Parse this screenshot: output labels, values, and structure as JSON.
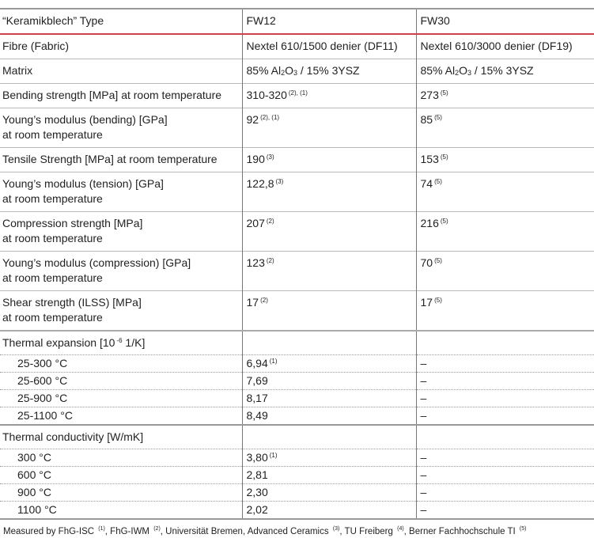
{
  "header": [
    "“Keramikblech” Type",
    "FW12",
    "FW30"
  ],
  "rows": [
    {
      "label": [
        "Fibre (Fabric)"
      ],
      "fw12": "Nextel 610/1500 denier (DF11)",
      "fw12_ref": "",
      "fw30": "Nextel 610/3000 denier (DF19)",
      "fw30_ref": ""
    },
    {
      "label": [
        "Matrix"
      ],
      "fw12": "85% Al2O3 / 15% 3YSZ",
      "fw12_ref": "",
      "fw30": "85% Al2O3 / 15% 3YSZ",
      "fw30_ref": ""
    },
    {
      "label": [
        "Bending strength [MPa] at room temperature"
      ],
      "fw12": "310-320",
      "fw12_ref": "(2), (1)",
      "fw30": "273",
      "fw30_ref": "(5)"
    },
    {
      "label": [
        "Young’s modulus (bending) [GPa]",
        "at room temperature"
      ],
      "fw12": "92",
      "fw12_ref": "(2), (1)",
      "fw30": "85",
      "fw30_ref": "(5)"
    },
    {
      "label": [
        "Tensile Strength [MPa] at room temperature"
      ],
      "fw12": "190",
      "fw12_ref": "(3)",
      "fw30": "153",
      "fw30_ref": "(5)"
    },
    {
      "label": [
        "Young’s modulus (tension) [GPa]",
        "at room temperature"
      ],
      "fw12": "122,8",
      "fw12_ref": "(3)",
      "fw30": "74",
      "fw30_ref": "(5)"
    },
    {
      "label": [
        "Compression strength [MPa]",
        "at room temperature"
      ],
      "fw12": "207",
      "fw12_ref": "(2)",
      "fw30": "216",
      "fw30_ref": "(5)"
    },
    {
      "label": [
        "Young’s modulus (compression) [GPa]",
        "at room temperature"
      ],
      "fw12": "123",
      "fw12_ref": "(2)",
      "fw30": "70",
      "fw30_ref": "(5)"
    },
    {
      "label": [
        "Shear strength (ILSS) [MPa]",
        "at room temperature"
      ],
      "fw12": "17",
      "fw12_ref": "(2)",
      "fw30": "17",
      "fw30_ref": "(5)"
    }
  ],
  "matrix_parts": {
    "pre": "85% Al",
    "sub1": "2",
    "mid": "O",
    "sub2": "3",
    "post": " / 15% 3YSZ"
  },
  "thermal_expansion": {
    "title": "Thermal expansion  [10",
    "exp": "-6",
    "unit": " 1/K]",
    "rows": [
      {
        "t": "25-300 °C",
        "fw12": "6,94",
        "ref": "(1)",
        "fw30": "–"
      },
      {
        "t": "25-600 °C",
        "fw12": "7,69",
        "ref": "",
        "fw30": "–"
      },
      {
        "t": "25-900 °C",
        "fw12": "8,17",
        "ref": "",
        "fw30": "–"
      },
      {
        "t": "25-1100 °C",
        "fw12": "8,49",
        "ref": "",
        "fw30": "–"
      }
    ]
  },
  "thermal_conductivity": {
    "title": "Thermal conductivity  [W/mK]",
    "rows": [
      {
        "t": "300 °C",
        "fw12": "3,80",
        "ref": "(1)",
        "fw30": "–"
      },
      {
        "t": "600 °C",
        "fw12": "2,81",
        "ref": "",
        "fw30": "–"
      },
      {
        "t": "900 °C",
        "fw12": "2,30",
        "ref": "",
        "fw30": "–"
      },
      {
        "t": "1100 °C",
        "fw12": "2,02",
        "ref": "",
        "fw30": "–"
      }
    ]
  },
  "footnote": [
    {
      "t": "Measured by FhG-ISC ",
      "r": "(1)"
    },
    {
      "t": ", FhG-IWM ",
      "r": "(2)"
    },
    {
      "t": ", Universität Bremen, Advanced Ceramics ",
      "r": "(3)"
    },
    {
      "t": ", TU Freiberg ",
      "r": "(4)"
    },
    {
      "t": ", Berner Fachhochschule TI ",
      "r": "(5)"
    }
  ]
}
